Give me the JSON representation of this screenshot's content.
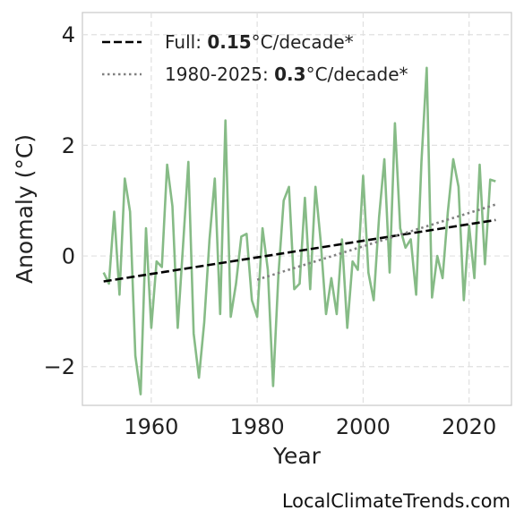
{
  "chart_data": {
    "type": "line",
    "xlabel": "Year",
    "ylabel": "Anomaly (°C)",
    "xlim": [
      1947,
      2028
    ],
    "ylim": [
      -2.7,
      4.4
    ],
    "xticks": [
      1960,
      1980,
      2000,
      2020
    ],
    "yticks": [
      -2,
      0,
      2,
      4
    ],
    "ytick_labels": [
      "−2",
      "0",
      "2",
      "4"
    ],
    "grid": true,
    "legend_position": "top-left",
    "series": [
      {
        "name": "",
        "style": "solid",
        "color": "#86bb86",
        "x": [
          1951,
          1952,
          1953,
          1954,
          1955,
          1956,
          1957,
          1958,
          1959,
          1960,
          1961,
          1962,
          1963,
          1964,
          1965,
          1966,
          1967,
          1968,
          1969,
          1970,
          1971,
          1972,
          1973,
          1974,
          1975,
          1976,
          1977,
          1978,
          1979,
          1980,
          1981,
          1982,
          1983,
          1984,
          1985,
          1986,
          1987,
          1988,
          1989,
          1990,
          1991,
          1992,
          1993,
          1994,
          1995,
          1996,
          1997,
          1998,
          1999,
          2000,
          2001,
          2002,
          2003,
          2004,
          2005,
          2006,
          2007,
          2008,
          2009,
          2010,
          2011,
          2012,
          2013,
          2014,
          2015,
          2016,
          2017,
          2018,
          2019,
          2020,
          2021,
          2022,
          2023,
          2024,
          2025
        ],
        "y": [
          -0.3,
          -0.5,
          0.8,
          -0.7,
          1.4,
          0.8,
          -1.8,
          -2.5,
          0.5,
          -1.3,
          -0.1,
          -0.2,
          1.65,
          0.9,
          -1.3,
          0.2,
          1.7,
          -1.4,
          -2.2,
          -1.2,
          0.3,
          1.4,
          -1.05,
          2.45,
          -1.1,
          -0.5,
          0.35,
          0.4,
          -0.8,
          -1.1,
          0.5,
          -0.25,
          -2.35,
          -0.35,
          1.0,
          1.25,
          -0.6,
          -0.5,
          1.05,
          -0.6,
          1.25,
          0.25,
          -1.05,
          -0.4,
          -1.05,
          0.3,
          -1.3,
          -0.1,
          -0.25,
          1.45,
          -0.3,
          -0.8,
          0.7,
          1.75,
          -0.3,
          2.4,
          0.5,
          0.15,
          0.3,
          -0.7,
          1.7,
          3.4,
          -0.75,
          0.0,
          -0.4,
          0.8,
          1.75,
          1.25,
          -0.8,
          0.55,
          -0.4,
          1.65,
          -0.15,
          1.38,
          1.35
        ]
      },
      {
        "name": "Full",
        "style": "dashed",
        "color": "#000000",
        "trend": "0.15",
        "unit": "°C/decade*",
        "x": [
          1951,
          2025
        ],
        "y": [
          -0.46,
          0.65
        ]
      },
      {
        "name": "1980-2025",
        "style": "dotted",
        "color": "#808080",
        "trend": "0.3",
        "unit": "°C/decade*",
        "x": [
          1980,
          2025
        ],
        "y": [
          -0.43,
          0.93
        ]
      }
    ]
  },
  "credit": "LocalClimateTrends.com"
}
